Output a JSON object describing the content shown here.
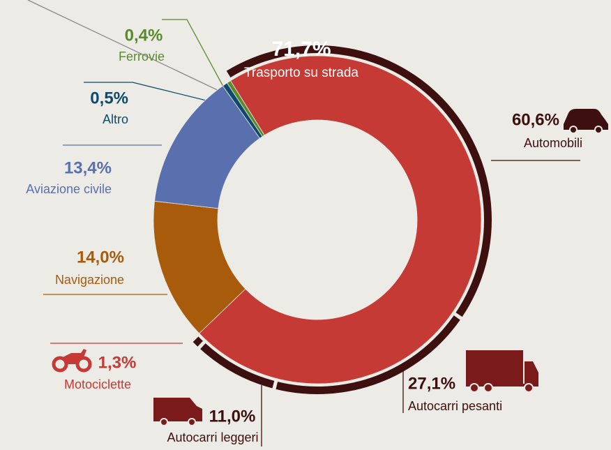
{
  "chart_data": {
    "type": "donut",
    "categories": [
      "Trasporto su strada",
      "Navigazione",
      "Aviazione civile",
      "Altro",
      "Ferrovie"
    ],
    "values": [
      71.7,
      14.0,
      13.4,
      0.5,
      0.4
    ],
    "value_labels": [
      "71,7%",
      "14,0%",
      "13,4%",
      "0,5%",
      "0,4%"
    ],
    "colors": [
      "#c53a35",
      "#a85b0a",
      "#5a6fae",
      "#0d4a6b",
      "#5a8a2e"
    ],
    "breakdown": {
      "categories": [
        "Automobili",
        "Autocarri pesanti",
        "Autocarri leggeri",
        "Motociclette"
      ],
      "values": [
        60.6,
        27.1,
        11.0,
        1.3
      ],
      "value_labels": [
        "60,6%",
        "27,1%",
        "11,0%",
        "1,3%"
      ],
      "color": "#3d0f0f"
    }
  }
}
